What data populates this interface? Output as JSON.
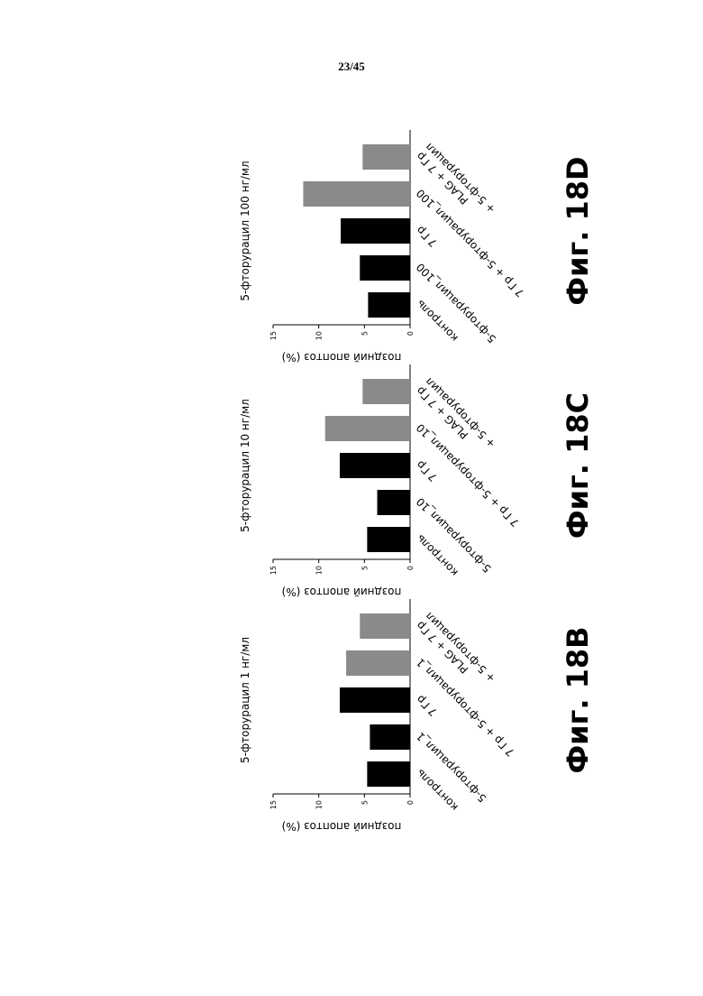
{
  "page_number": "23/45",
  "chart_data": [
    {
      "type": "bar",
      "title": "5-фторурацил 1 нг/мл",
      "figure_label": "Фиг. 18B",
      "ylabel": "поздний апоптоз (%)",
      "categories": [
        "контроль",
        "5-фторурацил_1",
        "7 Гр",
        "7 Гр + 5-фторурацил_1",
        [
          "PLAG + 7 Гр",
          "+ 5-фторурацил"
        ]
      ],
      "values": [
        4.7,
        4.4,
        7.7,
        7.0,
        5.5
      ],
      "colors": [
        "#000000",
        "#000000",
        "#000000",
        "#8a8a8a",
        "#8a8a8a"
      ],
      "ylim": [
        0,
        15
      ],
      "yticks": [
        0,
        5,
        10,
        15
      ]
    },
    {
      "type": "bar",
      "title": "5-фторурацил 10 нг/мл",
      "figure_label": "Фиг. 18C",
      "ylabel": "поздний апоптоз (%)",
      "categories": [
        "контроль",
        "5-фторурацил_10",
        "7 Гр",
        "7 Гр + 5-фторурацил_10",
        [
          "PLAG + 7 Гр",
          "+ 5-фторурацил"
        ]
      ],
      "values": [
        4.7,
        3.6,
        7.7,
        9.3,
        5.2
      ],
      "colors": [
        "#000000",
        "#000000",
        "#000000",
        "#8a8a8a",
        "#8a8a8a"
      ],
      "ylim": [
        0,
        15
      ],
      "yticks": [
        0,
        5,
        10,
        15
      ]
    },
    {
      "type": "bar",
      "title": "5-фторурацил 100 нг/мл",
      "figure_label": "Фиг. 18D",
      "ylabel": "поздний апоптоз (%)",
      "categories": [
        "контроль",
        "5-фторурацил_100",
        "7 Гр",
        "7 Гр + 5-фторурацил_100",
        [
          "PLAG + 7 Гр",
          "+ 5-фторурацил"
        ]
      ],
      "values": [
        4.6,
        5.5,
        7.6,
        11.7,
        5.2
      ],
      "colors": [
        "#000000",
        "#000000",
        "#000000",
        "#8a8a8a",
        "#8a8a8a"
      ],
      "ylim": [
        0,
        15
      ],
      "yticks": [
        0,
        5,
        10,
        15
      ]
    }
  ]
}
